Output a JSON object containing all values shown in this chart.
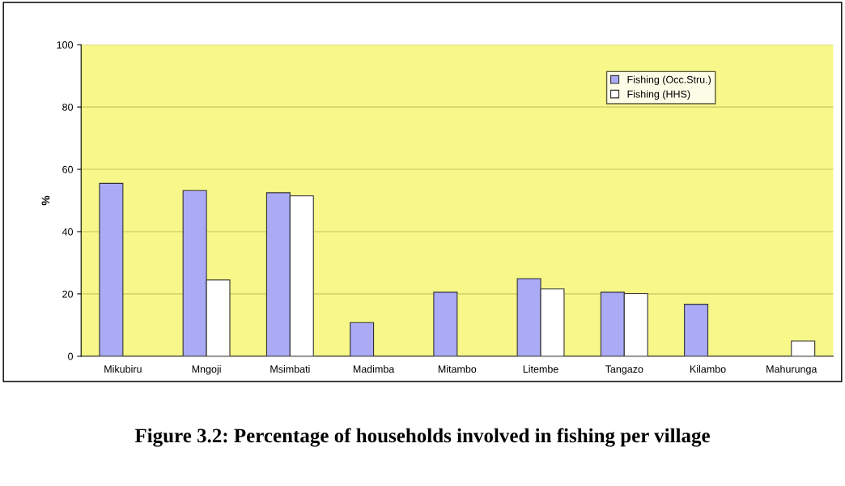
{
  "chart_data": {
    "type": "bar",
    "title": "Figure 3.2: Percentage of households involved in fishing per village",
    "ylabel": "%",
    "categories": [
      "Mikubiru",
      "Mngoji",
      "Msimbati",
      "Madimba",
      "Mitambo",
      "Litembe",
      "Tangazo",
      "Kilambo",
      "Mahurunga"
    ],
    "series": [
      {
        "name": "Fishing (Occ.Stru.)",
        "color": "#aaaaf5",
        "values": [
          55.5,
          53.2,
          52.5,
          10.8,
          20.6,
          24.9,
          20.6,
          16.7,
          null
        ]
      },
      {
        "name": "Fishing (HHS)",
        "color": "#ffffff",
        "values": [
          null,
          24.5,
          51.5,
          null,
          null,
          21.6,
          20.1,
          null,
          4.9
        ]
      }
    ],
    "ylim": [
      0,
      100
    ],
    "yticks": [
      0,
      20,
      40,
      60,
      80,
      100
    ],
    "grid": "y",
    "legend": "top right"
  }
}
